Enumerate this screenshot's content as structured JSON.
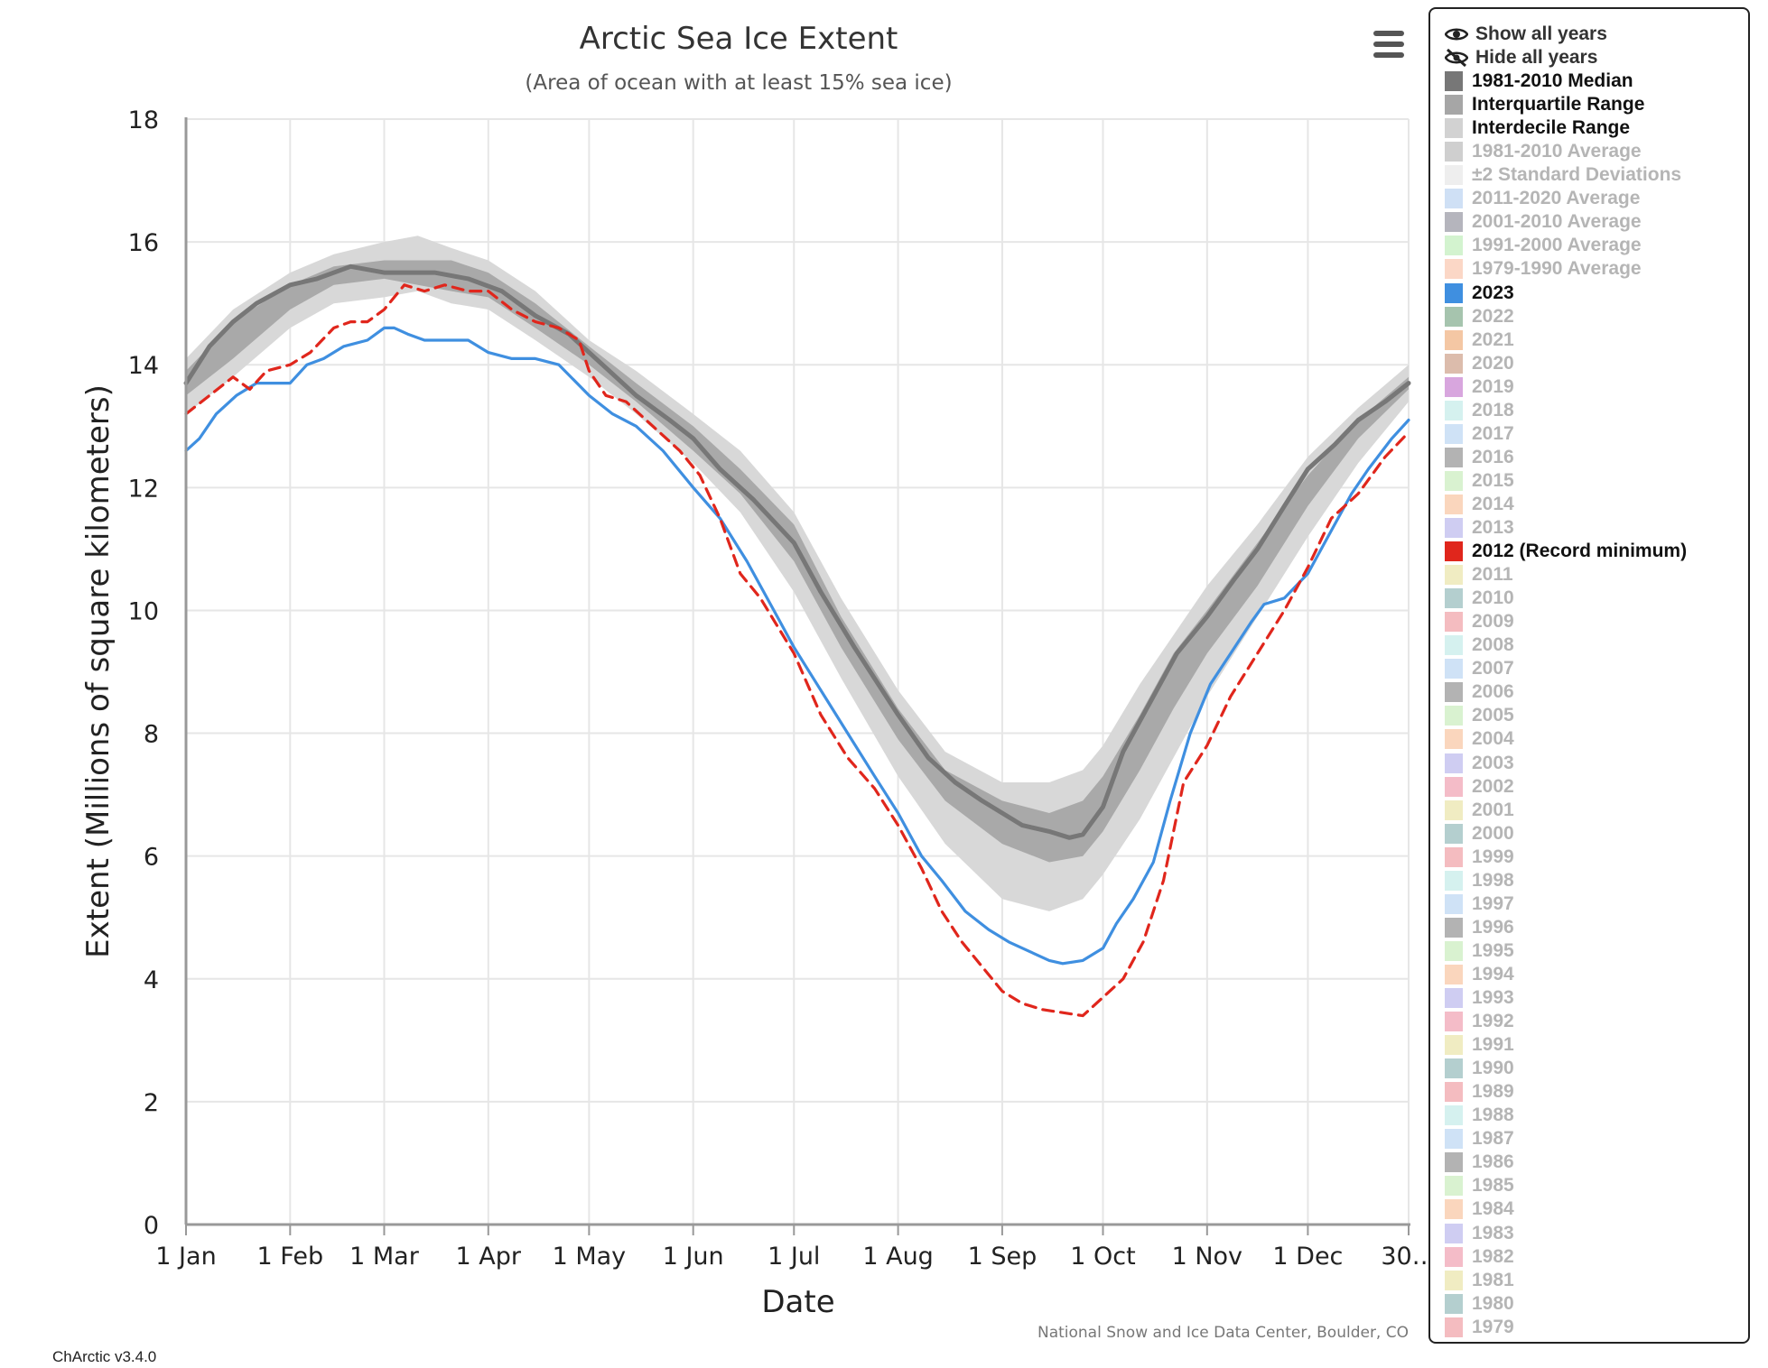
{
  "menu": {
    "icon": "hamburger-menu-icon"
  },
  "legend": {
    "controls": [
      {
        "label": "Show all years",
        "icon": "eye-icon"
      },
      {
        "label": "Hide all years",
        "icon": "eye-slash-icon"
      }
    ],
    "items": [
      {
        "label": "1981-2010 Median",
        "color": "#777777",
        "active": true
      },
      {
        "label": "Interquartile Range",
        "color": "#a6a6a6",
        "active": true
      },
      {
        "label": "Interdecile Range",
        "color": "#d2d2d2",
        "active": true
      },
      {
        "label": "1981-2010 Average",
        "color": "#cfcfcf",
        "active": false
      },
      {
        "label": "±2 Standard Deviations",
        "color": "#eeeeee",
        "active": false
      },
      {
        "label": "2011-2020 Average",
        "color": "#cfe0f5",
        "active": false
      },
      {
        "label": "2001-2010 Average",
        "color": "#b5b5bd",
        "active": false
      },
      {
        "label": "1991-2000 Average",
        "color": "#d3f3cf",
        "active": false
      },
      {
        "label": "1979-1990 Average",
        "color": "#fbd7c6",
        "active": false
      },
      {
        "label": "2023",
        "color": "#3f8fe0",
        "active": true
      },
      {
        "label": "2022",
        "color": "#a6c4ae",
        "active": false
      },
      {
        "label": "2021",
        "color": "#f4c7a4",
        "active": false
      },
      {
        "label": "2020",
        "color": "#dcbcac",
        "active": false
      },
      {
        "label": "2019",
        "color": "#d8a6de",
        "active": false
      },
      {
        "label": "2018",
        "color": "#d5f1ef",
        "active": false
      },
      {
        "label": "2017",
        "color": "#cfe2f6",
        "active": false
      },
      {
        "label": "2016",
        "color": "#b3b3b3",
        "active": false
      },
      {
        "label": "2015",
        "color": "#d9f2d0",
        "active": false
      },
      {
        "label": "2014",
        "color": "#fad6bd",
        "active": false
      },
      {
        "label": "2013",
        "color": "#cfcdf2",
        "active": false
      },
      {
        "label": "2012 (Record minimum)",
        "color": "#e0261c",
        "active": true
      },
      {
        "label": "2011",
        "color": "#f0ecc2",
        "active": false
      },
      {
        "label": "2010",
        "color": "#b4cfcf",
        "active": false
      },
      {
        "label": "2009",
        "color": "#f4bcc0",
        "active": false
      },
      {
        "label": "2008",
        "color": "#d5f1ef",
        "active": false
      },
      {
        "label": "2007",
        "color": "#cfe2f6",
        "active": false
      },
      {
        "label": "2006",
        "color": "#b3b3b3",
        "active": false
      },
      {
        "label": "2005",
        "color": "#d9f2d0",
        "active": false
      },
      {
        "label": "2004",
        "color": "#fad6bd",
        "active": false
      },
      {
        "label": "2003",
        "color": "#cfcdf2",
        "active": false
      },
      {
        "label": "2002",
        "color": "#f4bcc8",
        "active": false
      },
      {
        "label": "2001",
        "color": "#f0ecc2",
        "active": false
      },
      {
        "label": "2000",
        "color": "#b4cfcf",
        "active": false
      },
      {
        "label": "1999",
        "color": "#f4bcc0",
        "active": false
      },
      {
        "label": "1998",
        "color": "#d5f1ef",
        "active": false
      },
      {
        "label": "1997",
        "color": "#cfe2f6",
        "active": false
      },
      {
        "label": "1996",
        "color": "#b3b3b3",
        "active": false
      },
      {
        "label": "1995",
        "color": "#d9f2d0",
        "active": false
      },
      {
        "label": "1994",
        "color": "#fad6bd",
        "active": false
      },
      {
        "label": "1993",
        "color": "#cfcdf2",
        "active": false
      },
      {
        "label": "1992",
        "color": "#f4bcc8",
        "active": false
      },
      {
        "label": "1991",
        "color": "#f0ecc2",
        "active": false
      },
      {
        "label": "1990",
        "color": "#b4cfcf",
        "active": false
      },
      {
        "label": "1989",
        "color": "#f4bcc0",
        "active": false
      },
      {
        "label": "1988",
        "color": "#d5f1ef",
        "active": false
      },
      {
        "label": "1987",
        "color": "#cfe2f6",
        "active": false
      },
      {
        "label": "1986",
        "color": "#b3b3b3",
        "active": false
      },
      {
        "label": "1985",
        "color": "#d9f2d0",
        "active": false
      },
      {
        "label": "1984",
        "color": "#fad6bd",
        "active": false
      },
      {
        "label": "1983",
        "color": "#cfcdf2",
        "active": false
      },
      {
        "label": "1982",
        "color": "#f4bcc8",
        "active": false
      },
      {
        "label": "1981",
        "color": "#f0ecc2",
        "active": false
      },
      {
        "label": "1980",
        "color": "#b4cfcf",
        "active": false
      },
      {
        "label": "1979",
        "color": "#f4bcc0",
        "active": false
      }
    ]
  },
  "footer": {
    "credit": "National Snow and Ice Data Center, Boulder, CO",
    "version": "ChArctic v3.4.0"
  },
  "chart_data": {
    "type": "line",
    "title": "Arctic Sea Ice Extent",
    "subtitle": "(Area of ocean with at least 15% sea ice)",
    "xlabel": "Date",
    "ylabel": "Extent (Millions of square kilometers)",
    "ylim": [
      0,
      18
    ],
    "xlim": [
      1,
      365
    ],
    "x_unit": "day of year",
    "grid": true,
    "legend_position": "right",
    "x_ticks": [
      {
        "day": 1,
        "label": "1 Jan"
      },
      {
        "day": 32,
        "label": "1 Feb"
      },
      {
        "day": 60,
        "label": "1 Mar"
      },
      {
        "day": 91,
        "label": "1 Apr"
      },
      {
        "day": 121,
        "label": "1 May"
      },
      {
        "day": 152,
        "label": "1 Jun"
      },
      {
        "day": 182,
        "label": "1 Jul"
      },
      {
        "day": 213,
        "label": "1 Aug"
      },
      {
        "day": 244,
        "label": "1 Sep"
      },
      {
        "day": 274,
        "label": "1 Oct"
      },
      {
        "day": 305,
        "label": "1 Nov"
      },
      {
        "day": 335,
        "label": "1 Dec"
      },
      {
        "day": 365,
        "label": "30…"
      }
    ],
    "y_ticks": [
      0,
      2,
      4,
      6,
      8,
      10,
      12,
      14,
      16,
      18
    ],
    "bands": [
      {
        "name": "Interdecile Range",
        "color": "#d8d8d8",
        "x": [
          1,
          15,
          32,
          45,
          60,
          70,
          80,
          91,
          105,
          121,
          135,
          152,
          166,
          182,
          196,
          213,
          227,
          244,
          258,
          268,
          274,
          285,
          295,
          305,
          320,
          335,
          350,
          365
        ],
        "lower": [
          13.2,
          13.8,
          14.6,
          15.0,
          15.1,
          15.2,
          15.0,
          14.9,
          14.4,
          13.8,
          13.2,
          12.4,
          11.6,
          10.3,
          8.9,
          7.3,
          6.2,
          5.3,
          5.1,
          5.3,
          5.7,
          6.6,
          7.6,
          8.6,
          9.9,
          11.2,
          12.4,
          13.4
        ],
        "upper": [
          14.1,
          14.9,
          15.5,
          15.8,
          16.0,
          16.1,
          15.9,
          15.7,
          15.2,
          14.4,
          13.9,
          13.2,
          12.6,
          11.6,
          10.2,
          8.7,
          7.7,
          7.2,
          7.2,
          7.4,
          7.8,
          8.8,
          9.6,
          10.4,
          11.4,
          12.5,
          13.3,
          14.0
        ]
      },
      {
        "name": "Interquartile Range",
        "color": "#a9a9a9",
        "x": [
          1,
          15,
          32,
          45,
          60,
          70,
          80,
          91,
          105,
          121,
          135,
          152,
          166,
          182,
          196,
          213,
          227,
          244,
          258,
          268,
          274,
          285,
          295,
          305,
          320,
          335,
          350,
          365
        ],
        "lower": [
          13.5,
          14.1,
          14.9,
          15.3,
          15.4,
          15.3,
          15.2,
          15.1,
          14.6,
          14.0,
          13.4,
          12.6,
          11.9,
          10.8,
          9.4,
          7.9,
          6.9,
          6.2,
          5.9,
          6.0,
          6.4,
          7.4,
          8.4,
          9.3,
          10.4,
          11.7,
          12.8,
          13.6
        ],
        "upper": [
          13.9,
          14.7,
          15.3,
          15.6,
          15.7,
          15.7,
          15.7,
          15.5,
          15.0,
          14.3,
          13.7,
          13.0,
          12.3,
          11.4,
          9.9,
          8.4,
          7.4,
          6.9,
          6.7,
          6.9,
          7.3,
          8.3,
          9.3,
          10.0,
          11.1,
          12.2,
          13.1,
          13.8
        ]
      }
    ],
    "series": [
      {
        "name": "1981-2010 Median",
        "color": "#777777",
        "style": "solid",
        "x": [
          1,
          8,
          15,
          22,
          32,
          40,
          50,
          60,
          66,
          75,
          85,
          95,
          105,
          115,
          125,
          135,
          145,
          152,
          160,
          170,
          182,
          190,
          200,
          213,
          222,
          230,
          238,
          244,
          250,
          258,
          264,
          268,
          274,
          280,
          288,
          296,
          305,
          313,
          320,
          328,
          335,
          343,
          350,
          358,
          365
        ],
        "y": [
          13.7,
          14.3,
          14.7,
          15.0,
          15.3,
          15.4,
          15.6,
          15.5,
          15.5,
          15.5,
          15.4,
          15.2,
          14.8,
          14.5,
          14.0,
          13.5,
          13.1,
          12.8,
          12.3,
          11.8,
          11.1,
          10.3,
          9.4,
          8.3,
          7.6,
          7.2,
          6.9,
          6.7,
          6.5,
          6.4,
          6.3,
          6.35,
          6.8,
          7.7,
          8.5,
          9.3,
          9.9,
          10.5,
          11.0,
          11.7,
          12.3,
          12.7,
          13.1,
          13.4,
          13.7
        ]
      },
      {
        "name": "2023",
        "color": "#3f8fe0",
        "style": "solid",
        "x": [
          1,
          5,
          10,
          16,
          22,
          28,
          32,
          37,
          42,
          48,
          55,
          60,
          63,
          67,
          72,
          78,
          85,
          91,
          98,
          105,
          112,
          121,
          128,
          135,
          143,
          152,
          160,
          168,
          176,
          182,
          190,
          198,
          206,
          213,
          220,
          226,
          233,
          240,
          246,
          252,
          258,
          262,
          268,
          274,
          278,
          283,
          289,
          294,
          300,
          306,
          312,
          318,
          322,
          328,
          335,
          342,
          348,
          353,
          360,
          365
        ],
        "y": [
          12.6,
          12.8,
          13.2,
          13.5,
          13.7,
          13.7,
          13.7,
          14.0,
          14.1,
          14.3,
          14.4,
          14.6,
          14.6,
          14.5,
          14.4,
          14.4,
          14.4,
          14.2,
          14.1,
          14.1,
          14.0,
          13.5,
          13.2,
          13.0,
          12.6,
          12.0,
          11.5,
          10.8,
          10.0,
          9.4,
          8.7,
          8.0,
          7.3,
          6.7,
          6.0,
          5.6,
          5.1,
          4.8,
          4.6,
          4.45,
          4.3,
          4.25,
          4.3,
          4.5,
          4.9,
          5.3,
          5.9,
          6.9,
          8.0,
          8.8,
          9.3,
          9.8,
          10.1,
          10.2,
          10.6,
          11.3,
          11.9,
          12.3,
          12.8,
          13.1
        ]
      },
      {
        "name": "2012 (Record minimum)",
        "color": "#e0261c",
        "style": "dashed",
        "x": [
          1,
          8,
          15,
          20,
          25,
          32,
          38,
          45,
          50,
          55,
          60,
          63,
          66,
          72,
          78,
          85,
          91,
          98,
          105,
          112,
          118,
          121,
          126,
          132,
          140,
          148,
          154,
          160,
          166,
          172,
          182,
          190,
          198,
          206,
          213,
          220,
          226,
          232,
          238,
          244,
          250,
          256,
          262,
          268,
          274,
          280,
          286,
          292,
          298,
          305,
          312,
          320,
          328,
          335,
          342,
          350,
          358,
          365
        ],
        "y": [
          13.2,
          13.5,
          13.8,
          13.6,
          13.9,
          14.0,
          14.2,
          14.6,
          14.7,
          14.7,
          14.9,
          15.1,
          15.3,
          15.2,
          15.3,
          15.2,
          15.2,
          14.9,
          14.7,
          14.6,
          14.4,
          13.9,
          13.5,
          13.4,
          13.0,
          12.6,
          12.2,
          11.5,
          10.6,
          10.2,
          9.3,
          8.3,
          7.6,
          7.1,
          6.5,
          5.8,
          5.1,
          4.6,
          4.2,
          3.8,
          3.6,
          3.5,
          3.45,
          3.4,
          3.7,
          4.0,
          4.6,
          5.6,
          7.2,
          7.8,
          8.6,
          9.3,
          10.0,
          10.7,
          11.5,
          11.9,
          12.5,
          12.9
        ]
      }
    ]
  }
}
